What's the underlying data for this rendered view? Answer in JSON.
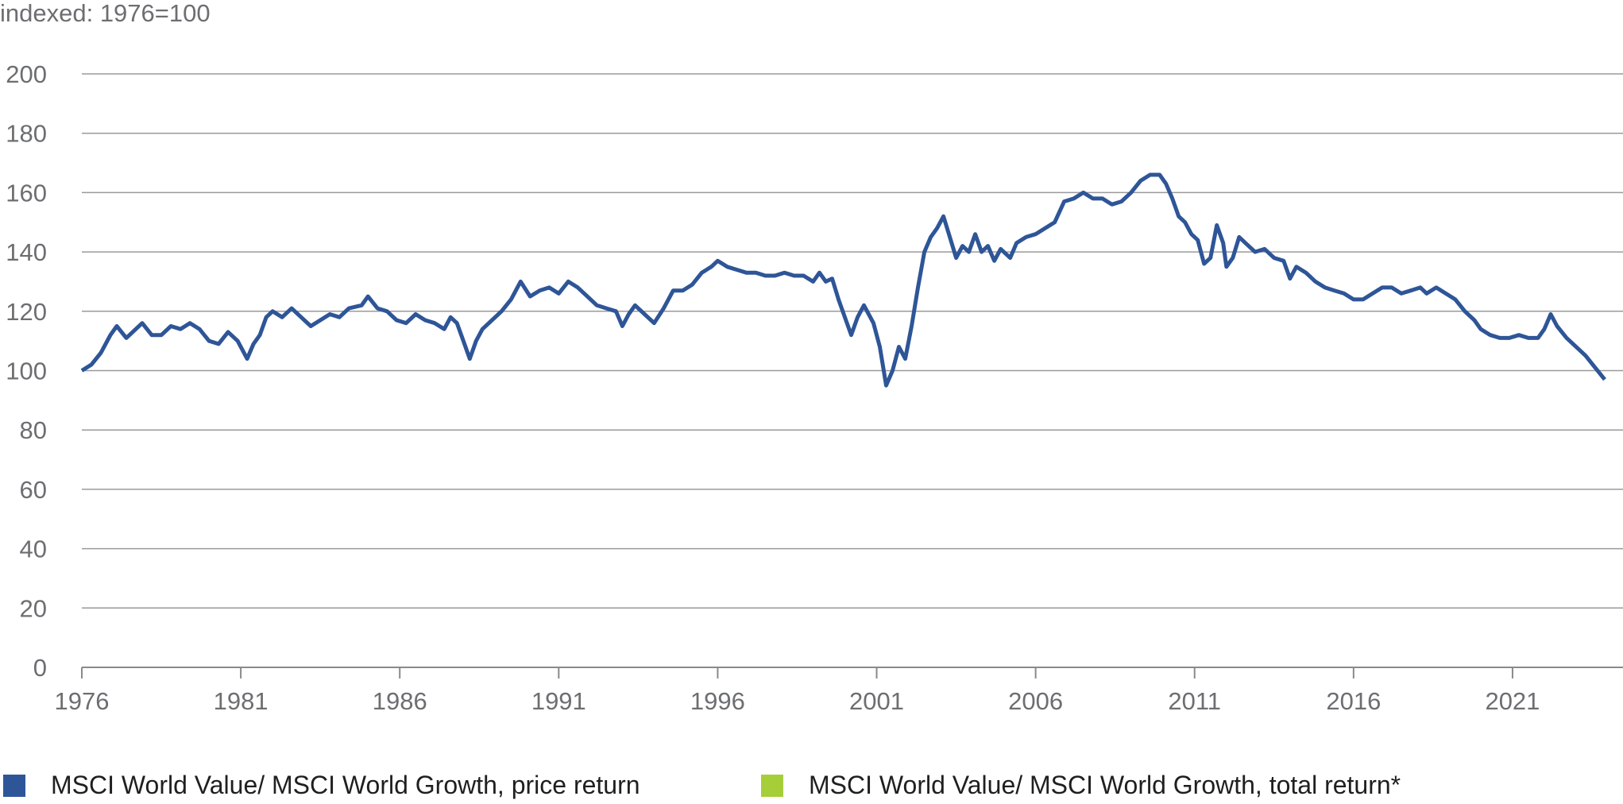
{
  "chart_data": {
    "type": "line",
    "ylabel": "indexed: 1976=100",
    "ylim": [
      0,
      200
    ],
    "yticks": [
      0,
      20,
      40,
      60,
      80,
      100,
      120,
      140,
      160,
      180,
      200
    ],
    "xlim": [
      1976,
      2023.9
    ],
    "xticks": [
      1976,
      1981,
      1986,
      1991,
      1996,
      2001,
      2006,
      2011,
      2016,
      2021
    ],
    "grid": true,
    "legend_position": "bottom",
    "series": [
      {
        "name": "MSCI World Value/ MSCI World Growth, price return",
        "color": "#2e5597",
        "points": [
          [
            1976.0,
            100
          ],
          [
            1976.3,
            102
          ],
          [
            1976.6,
            106
          ],
          [
            1976.9,
            112
          ],
          [
            1977.1,
            115
          ],
          [
            1977.4,
            111
          ],
          [
            1977.7,
            114
          ],
          [
            1977.9,
            116
          ],
          [
            1978.2,
            112
          ],
          [
            1978.5,
            112
          ],
          [
            1978.8,
            115
          ],
          [
            1979.1,
            114
          ],
          [
            1979.4,
            116
          ],
          [
            1979.7,
            114
          ],
          [
            1980.0,
            110
          ],
          [
            1980.3,
            109
          ],
          [
            1980.6,
            113
          ],
          [
            1980.9,
            110
          ],
          [
            1981.2,
            104
          ],
          [
            1981.4,
            109
          ],
          [
            1981.6,
            112
          ],
          [
            1981.8,
            118
          ],
          [
            1982.0,
            120
          ],
          [
            1982.3,
            118
          ],
          [
            1982.6,
            121
          ],
          [
            1982.9,
            118
          ],
          [
            1983.2,
            115
          ],
          [
            1983.5,
            117
          ],
          [
            1983.8,
            119
          ],
          [
            1984.1,
            118
          ],
          [
            1984.4,
            121
          ],
          [
            1984.8,
            122
          ],
          [
            1985.0,
            125
          ],
          [
            1985.3,
            121
          ],
          [
            1985.6,
            120
          ],
          [
            1985.9,
            117
          ],
          [
            1986.2,
            116
          ],
          [
            1986.5,
            119
          ],
          [
            1986.8,
            117
          ],
          [
            1987.1,
            116
          ],
          [
            1987.4,
            114
          ],
          [
            1987.6,
            118
          ],
          [
            1987.8,
            116
          ],
          [
            1988.0,
            110
          ],
          [
            1988.2,
            104
          ],
          [
            1988.4,
            110
          ],
          [
            1988.6,
            114
          ],
          [
            1988.9,
            117
          ],
          [
            1989.2,
            120
          ],
          [
            1989.5,
            124
          ],
          [
            1989.8,
            130
          ],
          [
            1990.1,
            125
          ],
          [
            1990.4,
            127
          ],
          [
            1990.7,
            128
          ],
          [
            1991.0,
            126
          ],
          [
            1991.3,
            130
          ],
          [
            1991.6,
            128
          ],
          [
            1991.9,
            125
          ],
          [
            1992.2,
            122
          ],
          [
            1992.5,
            121
          ],
          [
            1992.8,
            120
          ],
          [
            1993.0,
            115
          ],
          [
            1993.2,
            119
          ],
          [
            1993.4,
            122
          ],
          [
            1993.7,
            119
          ],
          [
            1994.0,
            116
          ],
          [
            1994.3,
            121
          ],
          [
            1994.6,
            127
          ],
          [
            1994.9,
            127
          ],
          [
            1995.2,
            129
          ],
          [
            1995.5,
            133
          ],
          [
            1995.8,
            135
          ],
          [
            1996.0,
            137
          ],
          [
            1996.3,
            135
          ],
          [
            1996.6,
            134
          ],
          [
            1996.9,
            133
          ],
          [
            1997.2,
            133
          ],
          [
            1997.5,
            132
          ],
          [
            1997.8,
            132
          ],
          [
            1998.1,
            133
          ],
          [
            1998.4,
            132
          ],
          [
            1998.7,
            132
          ],
          [
            1999.0,
            130
          ],
          [
            1999.2,
            133
          ],
          [
            1999.4,
            130
          ],
          [
            1999.6,
            131
          ],
          [
            1999.8,
            124
          ],
          [
            2000.0,
            118
          ],
          [
            2000.2,
            112
          ],
          [
            2000.4,
            118
          ],
          [
            2000.6,
            122
          ],
          [
            2000.9,
            116
          ],
          [
            2001.1,
            108
          ],
          [
            2001.3,
            95
          ],
          [
            2001.5,
            100
          ],
          [
            2001.7,
            108
          ],
          [
            2001.9,
            104
          ],
          [
            2002.1,
            115
          ],
          [
            2002.3,
            128
          ],
          [
            2002.5,
            140
          ],
          [
            2002.7,
            145
          ],
          [
            2002.9,
            148
          ],
          [
            2003.1,
            152
          ],
          [
            2003.3,
            145
          ],
          [
            2003.5,
            138
          ],
          [
            2003.7,
            142
          ],
          [
            2003.9,
            140
          ],
          [
            2004.1,
            146
          ],
          [
            2004.3,
            140
          ],
          [
            2004.5,
            142
          ],
          [
            2004.7,
            137
          ],
          [
            2004.9,
            141
          ],
          [
            2005.2,
            138
          ],
          [
            2005.4,
            143
          ],
          [
            2005.7,
            145
          ],
          [
            2006.0,
            146
          ],
          [
            2006.3,
            148
          ],
          [
            2006.6,
            150
          ],
          [
            2006.9,
            157
          ],
          [
            2007.2,
            158
          ],
          [
            2007.5,
            160
          ],
          [
            2007.8,
            158
          ],
          [
            2008.1,
            158
          ],
          [
            2008.4,
            156
          ],
          [
            2008.7,
            157
          ],
          [
            2009.0,
            160
          ],
          [
            2009.3,
            164
          ],
          [
            2009.6,
            166
          ],
          [
            2009.9,
            166
          ],
          [
            2010.1,
            163
          ],
          [
            2010.3,
            158
          ],
          [
            2010.5,
            152
          ],
          [
            2010.7,
            150
          ],
          [
            2010.9,
            146
          ],
          [
            2011.1,
            144
          ],
          [
            2011.3,
            136
          ],
          [
            2011.5,
            138
          ],
          [
            2011.7,
            149
          ],
          [
            2011.9,
            143
          ],
          [
            2012.0,
            135
          ],
          [
            2012.2,
            138
          ],
          [
            2012.4,
            145
          ],
          [
            2012.6,
            143
          ],
          [
            2012.9,
            140
          ],
          [
            2013.2,
            141
          ],
          [
            2013.5,
            138
          ],
          [
            2013.8,
            137
          ],
          [
            2014.0,
            131
          ],
          [
            2014.2,
            135
          ],
          [
            2014.5,
            133
          ],
          [
            2014.8,
            130
          ],
          [
            2015.1,
            128
          ],
          [
            2015.4,
            127
          ],
          [
            2015.7,
            126
          ],
          [
            2016.0,
            124
          ],
          [
            2016.3,
            124
          ],
          [
            2016.6,
            126
          ],
          [
            2016.9,
            128
          ],
          [
            2017.2,
            128
          ],
          [
            2017.5,
            126
          ],
          [
            2017.8,
            127
          ],
          [
            2018.1,
            128
          ],
          [
            2018.3,
            126
          ],
          [
            2018.6,
            128
          ],
          [
            2018.9,
            126
          ],
          [
            2019.2,
            124
          ],
          [
            2019.5,
            120
          ],
          [
            2019.8,
            117
          ],
          [
            2020.0,
            114
          ],
          [
            2020.3,
            112
          ],
          [
            2020.6,
            111
          ],
          [
            2020.9,
            111
          ],
          [
            2021.2,
            112
          ],
          [
            2021.5,
            111
          ],
          [
            2021.8,
            111
          ],
          [
            2022.0,
            114
          ],
          [
            2022.2,
            119
          ],
          [
            2022.4,
            115
          ],
          [
            2022.7,
            111
          ],
          [
            2023.0,
            108
          ],
          [
            2023.3,
            105
          ],
          [
            2023.6,
            101
          ],
          [
            2023.9,
            97
          ]
        ]
      },
      {
        "name": "MSCI World Value/ MSCI World Growth, total return*",
        "color": "#a6ce39",
        "points": []
      }
    ]
  }
}
